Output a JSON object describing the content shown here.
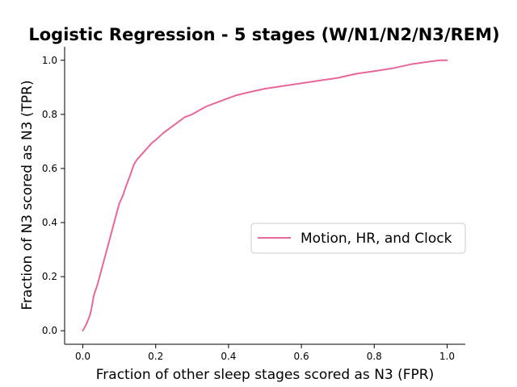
{
  "colors": {
    "series": "#e8679b",
    "axis": "#000000",
    "legend_border": "#cccccc"
  },
  "chart_data": {
    "type": "line",
    "title": "Logistic Regression - 5 stages (W/N1/N2/N3/REM)",
    "xlabel": "Fraction of other sleep stages scored as N3 (FPR)",
    "ylabel": "Fraction of N3 scored as N3 (TPR)",
    "xlim": [
      -0.05,
      1.05
    ],
    "ylim": [
      -0.05,
      1.05
    ],
    "xticks": [
      0.0,
      0.2,
      0.4,
      0.6,
      0.8,
      1.0
    ],
    "xtick_labels": [
      "0.0",
      "0.2",
      "0.4",
      "0.6",
      "0.8",
      "1.0"
    ],
    "yticks": [
      0.0,
      0.2,
      0.4,
      0.6,
      0.8,
      1.0
    ],
    "ytick_labels": [
      "0.0",
      "0.2",
      "0.4",
      "0.6",
      "0.8",
      "1.0"
    ],
    "grid": false,
    "legend_position": "center-right",
    "series": [
      {
        "name": "Motion, HR, and Clock",
        "x": [
          0.0,
          0.01,
          0.02,
          0.025,
          0.03,
          0.035,
          0.04,
          0.05,
          0.06,
          0.07,
          0.08,
          0.09,
          0.1,
          0.11,
          0.12,
          0.13,
          0.14,
          0.15,
          0.16,
          0.17,
          0.18,
          0.19,
          0.2,
          0.22,
          0.24,
          0.26,
          0.28,
          0.3,
          0.32,
          0.34,
          0.36,
          0.38,
          0.4,
          0.42,
          0.45,
          0.5,
          0.55,
          0.6,
          0.65,
          0.7,
          0.75,
          0.8,
          0.85,
          0.9,
          0.95,
          0.98,
          1.0
        ],
        "y": [
          0.0,
          0.025,
          0.06,
          0.09,
          0.13,
          0.15,
          0.17,
          0.22,
          0.27,
          0.32,
          0.37,
          0.42,
          0.47,
          0.5,
          0.54,
          0.575,
          0.615,
          0.635,
          0.65,
          0.665,
          0.68,
          0.695,
          0.705,
          0.73,
          0.75,
          0.77,
          0.79,
          0.8,
          0.815,
          0.83,
          0.84,
          0.85,
          0.86,
          0.87,
          0.88,
          0.895,
          0.905,
          0.915,
          0.925,
          0.935,
          0.95,
          0.96,
          0.97,
          0.985,
          0.995,
          1.0,
          1.0
        ]
      }
    ]
  }
}
